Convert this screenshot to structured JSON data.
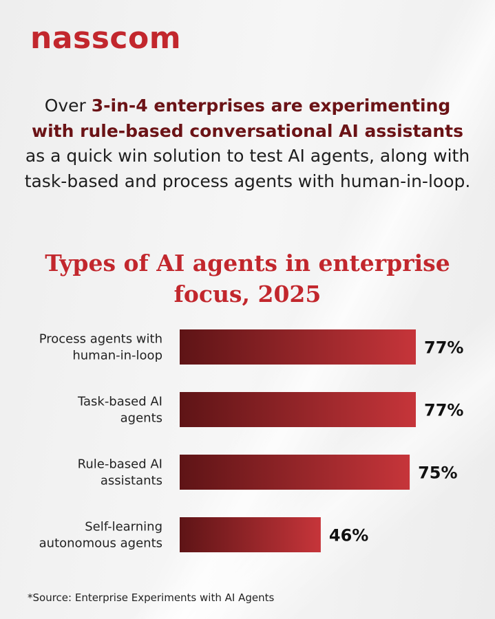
{
  "brand": {
    "logo_text": "nasscom",
    "color": "#c2272d"
  },
  "headline": {
    "prefix": "Over ",
    "highlight": "3-in-4 enterprises are experimenting with rule-based conversational AI assistants",
    "suffix": " as a quick win solution to test AI agents, along with task-based and process agents with human-in-loop."
  },
  "chart_data": {
    "type": "bar",
    "orientation": "horizontal",
    "title": "Types of AI agents in enterprise focus, 2025",
    "categories": [
      [
        "Process agents with",
        "human-in-loop"
      ],
      [
        "Task-based AI",
        "agents"
      ],
      [
        "Rule-based AI",
        "assistants"
      ],
      [
        "Self-learning",
        "autonomous agents"
      ]
    ],
    "values": [
      77,
      77,
      75,
      46
    ],
    "value_labels": [
      "77%",
      "77%",
      "75%",
      "46%"
    ],
    "unit": "%",
    "xlim": [
      0,
      100
    ],
    "grid": false,
    "legend": "none",
    "bar_gradient": [
      "#5e1416",
      "#c6353a"
    ]
  },
  "footer": {
    "source": "*Source: Enterprise Experiments with AI Agents"
  }
}
